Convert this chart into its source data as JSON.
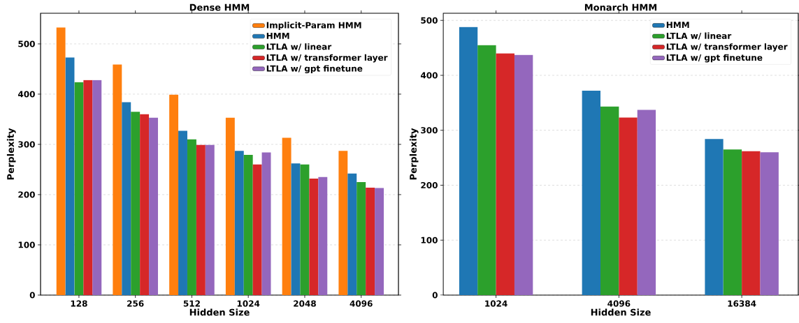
{
  "chart_data": [
    {
      "type": "bar",
      "title": "Dense HMM",
      "xlabel": "Hidden Size",
      "ylabel": "Perplexity",
      "categories": [
        "128",
        "256",
        "512",
        "1024",
        "2048",
        "4096"
      ],
      "series": [
        {
          "name": "Implicit-Param HMM",
          "color": "#ff7f0e",
          "values": [
            533,
            459,
            399,
            353,
            313,
            287
          ]
        },
        {
          "name": "HMM",
          "color": "#1f77b4",
          "values": [
            473,
            384,
            327,
            287,
            262,
            242
          ]
        },
        {
          "name": "LTLA w/ linear",
          "color": "#2ca02c",
          "values": [
            424,
            365,
            310,
            279,
            260,
            225
          ]
        },
        {
          "name": "LTLA w/ transformer layer",
          "color": "#d62728",
          "values": [
            428,
            360,
            299,
            260,
            232,
            214
          ]
        },
        {
          "name": "LTLA w/ gpt finetune",
          "color": "#9467bd",
          "values": [
            428,
            353,
            299,
            284,
            235,
            213
          ]
        }
      ],
      "ylim": [
        0,
        561
      ],
      "yticks": [
        0,
        100,
        200,
        300,
        400,
        500
      ],
      "grid": "y",
      "legend": "top right"
    },
    {
      "type": "bar",
      "title": "Monarch HMM",
      "xlabel": "Hidden Size",
      "ylabel": "Perplexity",
      "categories": [
        "1024",
        "4096",
        "16384"
      ],
      "series": [
        {
          "name": "HMM",
          "color": "#1f77b4",
          "values": [
            488,
            372,
            284
          ]
        },
        {
          "name": "LTLA w/ linear",
          "color": "#2ca02c",
          "values": [
            455,
            343,
            265
          ]
        },
        {
          "name": "LTLA w/ transformer layer",
          "color": "#d62728",
          "values": [
            440,
            323,
            262
          ]
        },
        {
          "name": "LTLA w/ gpt finetune",
          "color": "#9467bd",
          "values": [
            437,
            337,
            260
          ]
        }
      ],
      "ylim": [
        0,
        513
      ],
      "yticks": [
        0,
        100,
        200,
        300,
        400,
        500
      ],
      "grid": "y",
      "legend": "top right"
    }
  ]
}
